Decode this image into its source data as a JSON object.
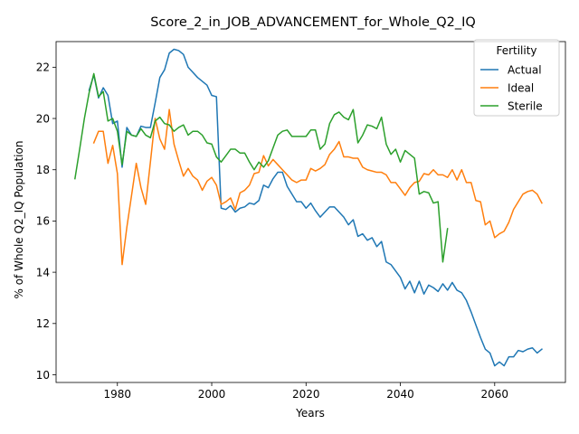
{
  "chart_data": {
    "type": "line",
    "title": "Score_2_in_JOB_ADVANCEMENT_for_Whole_Q2_IQ",
    "xlabel": "Years",
    "ylabel": "% of Whole Q2_IQ Population",
    "xlim": [
      1967,
      2075
    ],
    "ylim": [
      9.7,
      23.0
    ],
    "xticks": [
      1980,
      2000,
      2020,
      2040,
      2060
    ],
    "yticks": [
      10,
      12,
      14,
      16,
      18,
      20,
      22
    ],
    "legend": {
      "title": "Fertility",
      "position": "top-right"
    },
    "series": [
      {
        "name": "Actual",
        "color": "#1f77b4",
        "x": [
          1974,
          1975,
          1976,
          1977,
          1978,
          1979,
          1980,
          1981,
          1982,
          1983,
          1984,
          1985,
          1986,
          1987,
          1988,
          1989,
          1990,
          1991,
          1992,
          1993,
          1994,
          1995,
          1996,
          1997,
          1998,
          1999,
          2000,
          2001,
          2002,
          2003,
          2004,
          2005,
          2006,
          2007,
          2008,
          2009,
          2010,
          2011,
          2012,
          2013,
          2014,
          2015,
          2016,
          2017,
          2018,
          2019,
          2020,
          2021,
          2022,
          2023,
          2024,
          2025,
          2026,
          2027,
          2028,
          2029,
          2030,
          2031,
          2032,
          2033,
          2034,
          2035,
          2036,
          2037,
          2038,
          2039,
          2040,
          2041,
          2042,
          2043,
          2044,
          2045,
          2046,
          2047,
          2048,
          2049,
          2050,
          2051,
          2052,
          2053,
          2054,
          2055,
          2056,
          2057,
          2058,
          2059,
          2060,
          2061,
          2062,
          2063,
          2064,
          2065,
          2066,
          2067,
          2068,
          2069,
          2070
        ],
        "y": [
          21.1,
          21.7,
          20.8,
          21.2,
          20.9,
          19.8,
          19.9,
          18.1,
          19.65,
          19.35,
          19.3,
          19.7,
          19.65,
          19.65,
          20.6,
          21.6,
          21.9,
          22.55,
          22.7,
          22.65,
          22.5,
          22.0,
          21.8,
          21.6,
          21.45,
          21.3,
          20.9,
          20.85,
          16.5,
          16.45,
          16.6,
          16.35,
          16.5,
          16.55,
          16.7,
          16.65,
          16.8,
          17.4,
          17.3,
          17.65,
          17.9,
          17.9,
          17.35,
          17.05,
          16.75,
          16.75,
          16.5,
          16.7,
          16.4,
          16.15,
          16.35,
          16.55,
          16.55,
          16.35,
          16.15,
          15.85,
          16.05,
          15.4,
          15.5,
          15.25,
          15.35,
          15.0,
          15.2,
          14.4,
          14.3,
          14.05,
          13.8,
          13.35,
          13.65,
          13.2,
          13.65,
          13.15,
          13.5,
          13.4,
          13.25,
          13.55,
          13.3,
          13.6,
          13.3,
          13.2,
          12.9,
          12.45,
          11.95,
          11.45,
          11.0,
          10.85,
          10.35,
          10.5,
          10.35,
          10.7,
          10.7,
          10.95,
          10.9,
          11.0,
          11.05,
          10.85,
          11.0
        ]
      },
      {
        "name": "Ideal",
        "color": "#ff7f0e",
        "x": [
          1975,
          1976,
          1977,
          1978,
          1979,
          1980,
          1981,
          1982,
          1983,
          1984,
          1985,
          1986,
          1987,
          1988,
          1989,
          1990,
          1991,
          1992,
          1993,
          1994,
          1995,
          1996,
          1997,
          1998,
          1999,
          2000,
          2001,
          2002,
          2003,
          2004,
          2005,
          2006,
          2007,
          2008,
          2009,
          2010,
          2011,
          2012,
          2013,
          2014,
          2015,
          2016,
          2017,
          2018,
          2019,
          2020,
          2021,
          2022,
          2023,
          2024,
          2025,
          2026,
          2027,
          2028,
          2029,
          2030,
          2031,
          2032,
          2033,
          2034,
          2035,
          2036,
          2037,
          2038,
          2039,
          2040,
          2041,
          2042,
          2043,
          2044,
          2045,
          2046,
          2047,
          2048,
          2049,
          2050,
          2051,
          2052,
          2053,
          2054,
          2055,
          2056,
          2057,
          2058,
          2059,
          2060,
          2061,
          2062,
          2063,
          2064,
          2065,
          2066,
          2067,
          2068,
          2069,
          2070
        ],
        "y": [
          19.05,
          19.5,
          19.5,
          18.25,
          18.95,
          17.85,
          14.3,
          15.75,
          17.0,
          18.25,
          17.3,
          16.65,
          18.3,
          20.0,
          19.2,
          18.8,
          20.35,
          19.0,
          18.35,
          17.75,
          18.05,
          17.75,
          17.6,
          17.2,
          17.55,
          17.7,
          17.4,
          16.65,
          16.75,
          16.9,
          16.45,
          17.1,
          17.2,
          17.4,
          17.85,
          17.9,
          18.55,
          18.15,
          18.4,
          18.2,
          18.0,
          17.8,
          17.6,
          17.5,
          17.6,
          17.6,
          18.05,
          17.95,
          18.05,
          18.2,
          18.6,
          18.8,
          19.1,
          18.5,
          18.5,
          18.45,
          18.45,
          18.1,
          18.0,
          17.95,
          17.9,
          17.9,
          17.8,
          17.5,
          17.5,
          17.25,
          17.0,
          17.3,
          17.5,
          17.55,
          17.85,
          17.8,
          18.0,
          17.8,
          17.8,
          17.7,
          18.0,
          17.6,
          18.0,
          17.5,
          17.5,
          16.8,
          16.75,
          15.85,
          16.0,
          15.35,
          15.5,
          15.6,
          15.95,
          16.45,
          16.75,
          17.05,
          17.15,
          17.2,
          17.05,
          16.7
        ]
      },
      {
        "name": "Sterile",
        "color": "#2ca02c",
        "x": [
          1971,
          1972,
          1973,
          1974,
          1975,
          1976,
          1977,
          1978,
          1979,
          1980,
          1981,
          1982,
          1983,
          1984,
          1985,
          1986,
          1987,
          1988,
          1989,
          1990,
          1991,
          1992,
          1993,
          1994,
          1995,
          1996,
          1997,
          1998,
          1999,
          2000,
          2001,
          2002,
          2003,
          2004,
          2005,
          2006,
          2007,
          2008,
          2009,
          2010,
          2011,
          2012,
          2013,
          2014,
          2015,
          2016,
          2017,
          2018,
          2019,
          2020,
          2021,
          2022,
          2023,
          2024,
          2025,
          2026,
          2027,
          2028,
          2029,
          2030,
          2031,
          2032,
          2033,
          2034,
          2035,
          2036,
          2037,
          2038,
          2039,
          2040,
          2041,
          2042,
          2043,
          2044,
          2045,
          2046,
          2047,
          2048,
          2049,
          2050
        ],
        "y": [
          17.65,
          18.8,
          20.0,
          21.0,
          21.75,
          20.85,
          21.05,
          19.9,
          20.0,
          19.5,
          18.2,
          19.5,
          19.35,
          19.3,
          19.6,
          19.35,
          19.25,
          19.9,
          20.05,
          19.8,
          19.75,
          19.5,
          19.65,
          19.75,
          19.35,
          19.5,
          19.5,
          19.35,
          19.05,
          19.0,
          18.5,
          18.3,
          18.55,
          18.8,
          18.8,
          18.65,
          18.65,
          18.3,
          18.0,
          18.3,
          18.1,
          18.35,
          18.85,
          19.35,
          19.5,
          19.55,
          19.3,
          19.3,
          19.3,
          19.3,
          19.55,
          19.55,
          18.8,
          19.0,
          19.8,
          20.15,
          20.25,
          20.05,
          19.95,
          20.35,
          19.05,
          19.35,
          19.75,
          19.7,
          19.6,
          20.05,
          19.0,
          18.6,
          18.8,
          18.3,
          18.75,
          18.6,
          18.45,
          17.05,
          17.15,
          17.1,
          16.7,
          16.75,
          14.4,
          15.7
        ]
      }
    ]
  }
}
